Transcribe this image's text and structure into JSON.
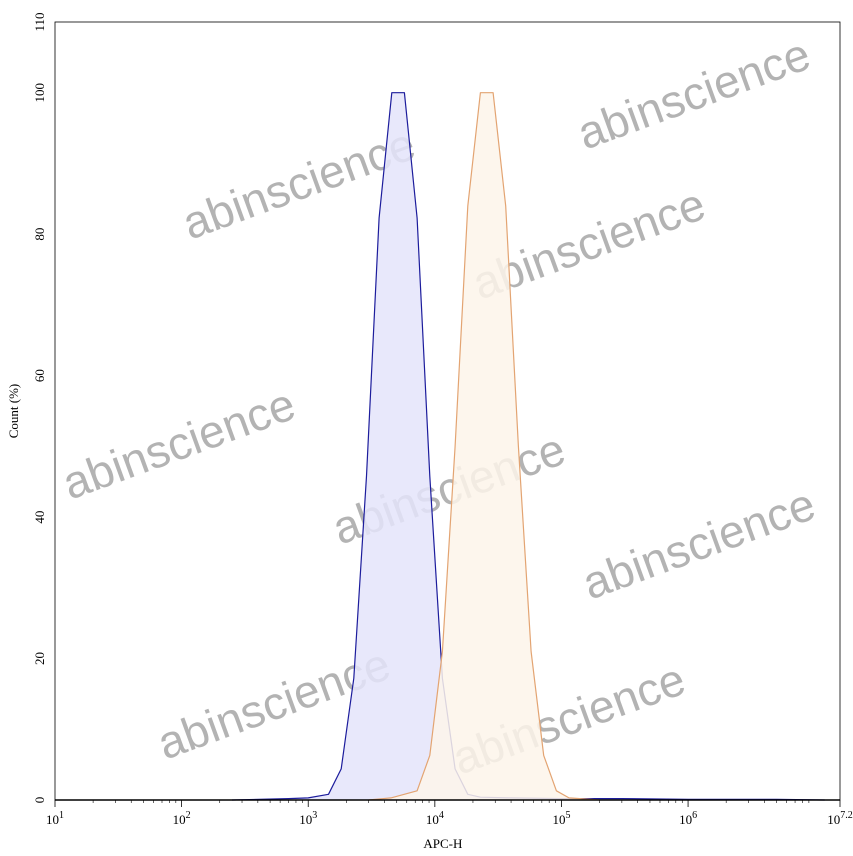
{
  "chart_data": {
    "type": "area",
    "title": "",
    "xlabel": "APC-H",
    "ylabel": "Count (%)",
    "x_scale": "log",
    "xlim": [
      10,
      15848931.92
    ],
    "ylim": [
      0,
      110
    ],
    "x_ticks": [
      {
        "value": 10,
        "base": "10",
        "exp": "1"
      },
      {
        "value": 100,
        "base": "10",
        "exp": "2"
      },
      {
        "value": 1000,
        "base": "10",
        "exp": "3"
      },
      {
        "value": 10000,
        "base": "10",
        "exp": "4"
      },
      {
        "value": 100000,
        "base": "10",
        "exp": "5"
      },
      {
        "value": 1000000,
        "base": "10",
        "exp": "6"
      },
      {
        "value": 15848931.92,
        "base": "10",
        "exp": "7.2"
      }
    ],
    "y_ticks": [
      "0",
      "20",
      "40",
      "60",
      "80",
      "100",
      "110"
    ],
    "y_tick_values": [
      0,
      20,
      40,
      60,
      80,
      100,
      110
    ],
    "grid": false,
    "legend": "none",
    "series": [
      {
        "line_color": "#1c1c9c",
        "fill_color": "#e4e4fa",
        "points": [
          [
            250,
            0
          ],
          [
            700,
            0.2
          ],
          [
            1000,
            0.3
          ],
          [
            1445,
            0.8
          ],
          [
            1820,
            4.4
          ],
          [
            2291,
            17.2
          ],
          [
            2884,
            45.8
          ],
          [
            3631,
            82.3
          ],
          [
            4571,
            100
          ],
          [
            4700,
            100
          ],
          [
            5754,
            100
          ],
          [
            7244,
            82.3
          ],
          [
            9120,
            45.8
          ],
          [
            11482,
            17.2
          ],
          [
            14454,
            4.4
          ],
          [
            18197,
            0.8
          ],
          [
            22909,
            0.4
          ],
          [
            40000,
            0.3
          ],
          [
            100000,
            0.2
          ],
          [
            300000,
            0.2
          ],
          [
            1000000,
            0.1
          ],
          [
            5000000,
            0.1
          ],
          [
            12000000,
            0
          ]
        ]
      },
      {
        "line_color": "#e3a472",
        "fill_color": "#fdf4ea",
        "points": [
          [
            3000,
            0
          ],
          [
            4500,
            0.3
          ],
          [
            7244,
            1.3
          ],
          [
            9120,
            6.3
          ],
          [
            11482,
            21
          ],
          [
            14454,
            50
          ],
          [
            18197,
            84
          ],
          [
            22909,
            100
          ],
          [
            28840,
            100
          ],
          [
            36308,
            84
          ],
          [
            45709,
            50
          ],
          [
            57544,
            21
          ],
          [
            72444,
            6.3
          ],
          [
            91201,
            1.3
          ],
          [
            114815,
            0.3
          ],
          [
            200000,
            0
          ]
        ]
      }
    ]
  },
  "watermark": "abinscience"
}
